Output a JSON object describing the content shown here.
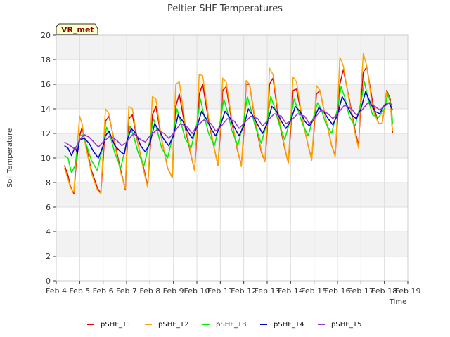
{
  "chart_data": {
    "type": "line",
    "title": "Peltier SHF Temperatures",
    "xlabel": "Time",
    "ylabel": "Soil Temperature",
    "badge": "VR_met",
    "xlim": [
      4,
      19
    ],
    "ylim": [
      0,
      20
    ],
    "x_ticks": [
      {
        "v": 4,
        "label": "Feb 4"
      },
      {
        "v": 5,
        "label": "Feb 5"
      },
      {
        "v": 6,
        "label": "Feb 6"
      },
      {
        "v": 7,
        "label": "Feb 7"
      },
      {
        "v": 8,
        "label": "Feb 8"
      },
      {
        "v": 9,
        "label": "Feb 9"
      },
      {
        "v": 10,
        "label": "Feb 10"
      },
      {
        "v": 11,
        "label": "Feb 11"
      },
      {
        "v": 12,
        "label": "Feb 12"
      },
      {
        "v": 13,
        "label": "Feb 13"
      },
      {
        "v": 14,
        "label": "Feb 14"
      },
      {
        "v": 15,
        "label": "Feb 15"
      },
      {
        "v": 16,
        "label": "Feb 16"
      },
      {
        "v": 17,
        "label": "Feb 17"
      },
      {
        "v": 18,
        "label": "Feb 18"
      },
      {
        "v": 19,
        "label": "Feb 19"
      }
    ],
    "y_ticks": [
      {
        "v": 0,
        "label": "0"
      },
      {
        "v": 2,
        "label": "2"
      },
      {
        "v": 4,
        "label": "4"
      },
      {
        "v": 6,
        "label": "6"
      },
      {
        "v": 8,
        "label": "8"
      },
      {
        "v": 10,
        "label": "10"
      },
      {
        "v": 12,
        "label": "12"
      },
      {
        "v": 14,
        "label": "14"
      },
      {
        "v": 16,
        "label": "16"
      },
      {
        "v": 18,
        "label": "18"
      },
      {
        "v": 20,
        "label": "20"
      }
    ],
    "grid": true,
    "legend_position": "bottom",
    "series": [
      {
        "name": "pSHF_T1",
        "color": "#dd0000",
        "x": [
          4.35,
          4.5,
          4.6,
          4.75,
          4.85,
          5.0,
          5.1,
          5.25,
          5.5,
          5.75,
          5.9,
          6.0,
          6.1,
          6.25,
          6.5,
          6.75,
          6.95,
          7.0,
          7.1,
          7.25,
          7.5,
          7.75,
          7.9,
          8.0,
          8.1,
          8.25,
          8.5,
          8.75,
          8.95,
          9.0,
          9.1,
          9.25,
          9.5,
          9.75,
          9.9,
          10.0,
          10.1,
          10.25,
          10.5,
          10.75,
          10.9,
          11.0,
          11.1,
          11.25,
          11.5,
          11.75,
          11.9,
          12.0,
          12.1,
          12.25,
          12.5,
          12.75,
          12.9,
          13.0,
          13.1,
          13.25,
          13.5,
          13.75,
          13.9,
          14.0,
          14.1,
          14.25,
          14.5,
          14.75,
          14.9,
          15.0,
          15.1,
          15.25,
          15.5,
          15.75,
          15.9,
          16.0,
          16.1,
          16.25,
          16.5,
          16.75,
          16.9,
          17.0,
          17.1,
          17.25,
          17.5,
          17.75,
          17.9,
          18.0,
          18.1,
          18.25,
          18.35
        ],
        "y": [
          9.4,
          8.6,
          7.7,
          7.1,
          9.5,
          11.8,
          12.5,
          11.2,
          9.0,
          7.6,
          7.1,
          9.8,
          13.0,
          13.4,
          11.2,
          9.0,
          7.4,
          10.0,
          13.2,
          13.5,
          11.0,
          9.0,
          7.7,
          10.5,
          13.5,
          14.2,
          11.5,
          9.2,
          8.4,
          11.0,
          14.2,
          15.2,
          12.5,
          10.2,
          9.0,
          11.8,
          15.2,
          16.0,
          13.0,
          10.7,
          9.4,
          12.0,
          15.5,
          15.8,
          12.8,
          10.5,
          9.4,
          12.0,
          16.0,
          16.0,
          12.8,
          10.5,
          9.7,
          12.2,
          16.0,
          16.5,
          13.0,
          10.8,
          9.6,
          12.2,
          15.5,
          15.6,
          13.2,
          11.0,
          9.9,
          12.3,
          15.2,
          15.5,
          13.2,
          11.0,
          10.2,
          13.0,
          16.0,
          17.2,
          14.8,
          12.2,
          11.0,
          14.5,
          17.0,
          17.4,
          14.5,
          12.8,
          12.8,
          14.0,
          15.5,
          14.8,
          12.0
        ]
      },
      {
        "name": "pSHF_T2",
        "color": "#ffa500",
        "x": [
          4.35,
          4.5,
          4.6,
          4.75,
          4.85,
          5.0,
          5.1,
          5.25,
          5.5,
          5.75,
          5.9,
          6.0,
          6.1,
          6.25,
          6.5,
          6.75,
          6.95,
          7.0,
          7.1,
          7.25,
          7.5,
          7.75,
          7.9,
          8.0,
          8.1,
          8.25,
          8.5,
          8.75,
          8.95,
          9.0,
          9.1,
          9.25,
          9.5,
          9.75,
          9.9,
          10.0,
          10.1,
          10.25,
          10.5,
          10.75,
          10.9,
          11.0,
          11.1,
          11.25,
          11.5,
          11.75,
          11.9,
          12.0,
          12.1,
          12.25,
          12.5,
          12.75,
          12.9,
          13.0,
          13.1,
          13.25,
          13.5,
          13.75,
          13.9,
          14.0,
          14.1,
          14.25,
          14.5,
          14.75,
          14.9,
          15.0,
          15.1,
          15.25,
          15.5,
          15.75,
          15.9,
          16.0,
          16.1,
          16.25,
          16.5,
          16.75,
          16.9,
          17.0,
          17.1,
          17.25,
          17.5,
          17.75,
          17.9,
          18.0,
          18.1,
          18.25,
          18.35
        ],
        "y": [
          9.2,
          8.3,
          7.6,
          7.2,
          10.0,
          13.4,
          12.8,
          11.0,
          8.8,
          7.4,
          7.1,
          10.5,
          14.0,
          13.6,
          11.0,
          8.8,
          7.5,
          10.5,
          14.2,
          14.0,
          11.0,
          8.8,
          7.6,
          11.0,
          15.0,
          14.8,
          11.5,
          9.2,
          8.4,
          11.5,
          16.0,
          16.2,
          12.8,
          10.3,
          9.0,
          12.5,
          16.8,
          16.7,
          13.3,
          10.7,
          9.4,
          12.5,
          16.5,
          16.2,
          13.0,
          10.6,
          9.3,
          12.5,
          16.3,
          16.0,
          13.0,
          10.6,
          9.7,
          12.8,
          17.3,
          16.8,
          13.3,
          10.9,
          9.6,
          12.8,
          16.6,
          16.2,
          13.2,
          11.0,
          9.8,
          12.7,
          15.9,
          15.5,
          13.2,
          11.0,
          10.1,
          13.8,
          18.2,
          17.5,
          14.6,
          12.0,
          10.8,
          15.5,
          18.5,
          17.5,
          14.0,
          12.8,
          12.8,
          14.0,
          15.4,
          14.6,
          12.2
        ]
      },
      {
        "name": "pSHF_T3",
        "color": "#00ee00",
        "x": [
          4.35,
          4.5,
          4.65,
          4.8,
          5.0,
          5.15,
          5.3,
          5.5,
          5.75,
          6.0,
          6.15,
          6.3,
          6.5,
          6.75,
          7.0,
          7.15,
          7.3,
          7.5,
          7.75,
          8.0,
          8.15,
          8.3,
          8.5,
          8.75,
          9.0,
          9.15,
          9.3,
          9.5,
          9.75,
          10.0,
          10.15,
          10.3,
          10.5,
          10.75,
          11.0,
          11.15,
          11.3,
          11.5,
          11.75,
          12.0,
          12.15,
          12.3,
          12.5,
          12.75,
          13.0,
          13.15,
          13.3,
          13.5,
          13.75,
          14.0,
          14.15,
          14.3,
          14.5,
          14.75,
          15.0,
          15.15,
          15.3,
          15.5,
          15.75,
          16.0,
          16.15,
          16.3,
          16.5,
          16.75,
          17.0,
          17.15,
          17.3,
          17.5,
          17.75,
          18.0,
          18.15,
          18.3,
          18.35
        ],
        "y": [
          10.2,
          10.0,
          8.8,
          9.4,
          11.8,
          11.9,
          11.0,
          9.8,
          9.0,
          11.0,
          12.5,
          11.8,
          10.4,
          9.2,
          11.2,
          12.6,
          11.8,
          10.4,
          9.4,
          11.5,
          13.2,
          12.3,
          10.8,
          10.0,
          12.0,
          14.0,
          13.0,
          11.6,
          10.8,
          12.8,
          14.8,
          13.5,
          12.0,
          11.0,
          13.0,
          14.8,
          13.8,
          12.2,
          11.0,
          13.0,
          15.0,
          14.0,
          12.5,
          11.2,
          13.0,
          15.0,
          14.2,
          12.8,
          11.5,
          13.2,
          14.8,
          14.0,
          12.8,
          11.8,
          13.5,
          14.5,
          14.0,
          12.8,
          12.0,
          14.0,
          15.8,
          15.0,
          13.4,
          12.6,
          14.5,
          16.2,
          14.8,
          13.5,
          13.3,
          14.0,
          15.2,
          14.2,
          12.8
        ]
      },
      {
        "name": "pSHF_T4",
        "color": "#0000cc",
        "x": [
          4.35,
          4.5,
          4.65,
          4.8,
          4.9,
          5.0,
          5.2,
          5.4,
          5.6,
          5.8,
          6.0,
          6.1,
          6.25,
          6.5,
          6.75,
          6.9,
          7.0,
          7.2,
          7.4,
          7.6,
          7.8,
          8.0,
          8.2,
          8.4,
          8.6,
          8.8,
          9.0,
          9.2,
          9.4,
          9.6,
          9.8,
          10.0,
          10.2,
          10.4,
          10.6,
          10.8,
          11.0,
          11.2,
          11.4,
          11.6,
          11.8,
          12.0,
          12.2,
          12.4,
          12.6,
          12.8,
          13.0,
          13.2,
          13.4,
          13.6,
          13.8,
          14.0,
          14.2,
          14.4,
          14.6,
          14.8,
          15.0,
          15.2,
          15.4,
          15.6,
          15.8,
          16.0,
          16.2,
          16.4,
          16.6,
          16.8,
          17.0,
          17.2,
          17.4,
          17.6,
          17.8,
          18.0,
          18.2,
          18.35
        ],
        "y": [
          11.0,
          10.8,
          10.2,
          10.9,
          10.4,
          11.5,
          11.6,
          11.2,
          10.5,
          10.0,
          11.0,
          11.8,
          12.2,
          11.0,
          10.5,
          10.3,
          11.3,
          12.4,
          12.0,
          11.0,
          10.5,
          11.2,
          12.8,
          12.2,
          11.5,
          11.0,
          11.8,
          13.5,
          13.0,
          12.2,
          11.6,
          12.5,
          13.8,
          13.2,
          12.4,
          11.8,
          12.6,
          13.8,
          13.3,
          12.5,
          11.8,
          12.6,
          14.0,
          13.4,
          12.7,
          12.0,
          12.8,
          14.2,
          13.8,
          13.0,
          12.4,
          13.0,
          14.2,
          13.8,
          13.0,
          12.6,
          13.2,
          14.1,
          13.8,
          13.2,
          12.7,
          13.5,
          15.0,
          14.3,
          13.5,
          13.2,
          14.0,
          15.4,
          14.5,
          13.8,
          13.6,
          14.3,
          14.5,
          13.9
        ]
      },
      {
        "name": "pSHF_T5",
        "color": "#9933cc",
        "x": [
          4.35,
          4.6,
          4.8,
          5.0,
          5.2,
          5.4,
          5.6,
          5.8,
          6.0,
          6.3,
          6.6,
          6.8,
          7.0,
          7.3,
          7.6,
          7.8,
          8.0,
          8.3,
          8.6,
          8.8,
          9.0,
          9.3,
          9.6,
          9.8,
          10.0,
          10.3,
          10.6,
          10.8,
          11.0,
          11.3,
          11.6,
          11.8,
          12.0,
          12.3,
          12.6,
          12.8,
          13.0,
          13.3,
          13.6,
          13.8,
          14.0,
          14.3,
          14.6,
          14.8,
          15.0,
          15.3,
          15.6,
          15.8,
          16.0,
          16.3,
          16.6,
          16.8,
          17.0,
          17.3,
          17.6,
          17.8,
          18.0,
          18.2,
          18.35
        ],
        "y": [
          11.3,
          11.0,
          10.7,
          11.5,
          11.9,
          11.7,
          11.3,
          10.9,
          11.3,
          11.8,
          11.4,
          11.0,
          11.3,
          12.0,
          11.5,
          11.3,
          11.8,
          12.3,
          12.0,
          11.6,
          12.0,
          12.8,
          12.5,
          12.0,
          12.6,
          13.1,
          12.8,
          12.2,
          12.5,
          13.2,
          13.0,
          12.4,
          12.8,
          13.4,
          13.2,
          12.6,
          13.0,
          13.6,
          13.4,
          12.8,
          13.0,
          13.6,
          13.4,
          12.8,
          13.2,
          13.9,
          13.6,
          13.2,
          13.6,
          14.3,
          14.0,
          13.5,
          13.8,
          14.5,
          14.2,
          13.9,
          14.2,
          14.5,
          14.3
        ]
      }
    ]
  }
}
